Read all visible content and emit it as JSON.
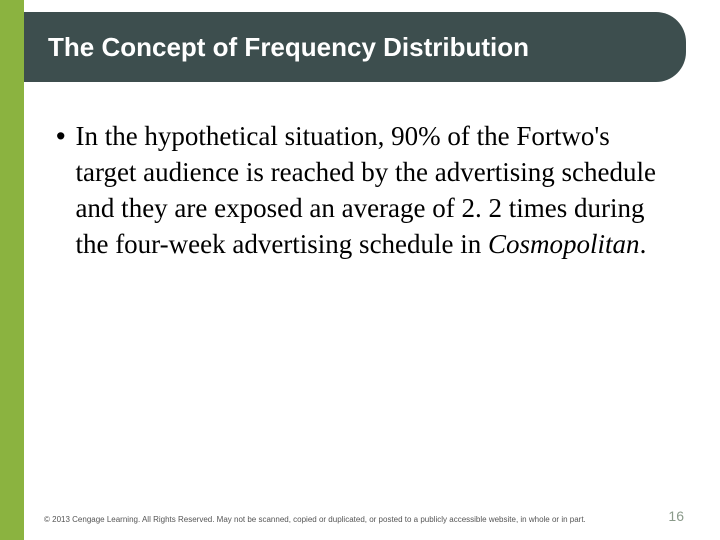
{
  "colors": {
    "accent_green": "#8bb340",
    "header_bg": "#3d4e4e",
    "title_text": "#ffffff",
    "body_text": "#000000",
    "footer_text": "#555555",
    "pagenum_text": "#8a9a8a",
    "background": "#ffffff"
  },
  "layout": {
    "slide_width": 720,
    "slide_height": 540,
    "left_stripe_width": 24,
    "header_radius": 30,
    "title_fontsize": 26,
    "body_fontsize": 27,
    "body_lineheight": 36,
    "footer_fontsize": 8,
    "pagenum_fontsize": 14
  },
  "header": {
    "title": "The Concept of Frequency Distribution"
  },
  "body": {
    "bullet": "•",
    "text_part1": "In the hypothetical situation, 90% of the Fortwo's target audience is reached by the advertising schedule and they are exposed an average of 2. 2 times during the four-week advertising schedule in ",
    "text_italic": "Cosmopolitan",
    "text_part2": "."
  },
  "footer": {
    "copyright": "© 2013 Cengage Learning. All Rights Reserved. May not be scanned, copied or duplicated, or posted to a publicly accessible website, in whole or in part.",
    "page_number": "16"
  }
}
